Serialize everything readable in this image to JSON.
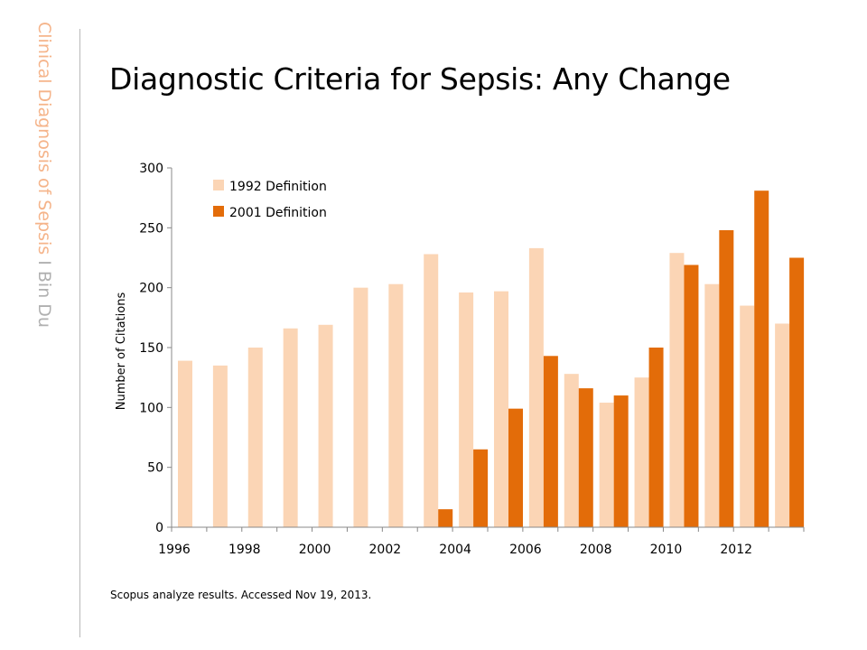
{
  "sidebar": {
    "title": "Clinical Diagnosis of Sepsis",
    "separator": " I ",
    "author": "Bin Du"
  },
  "page_title": "Diagnostic Criteria for Sepsis: Any Change",
  "footnote": "Scopus analyze results. Accessed Nov 19, 2013.",
  "colors": {
    "series_1992": "#fbd5b5",
    "series_2001": "#e36c09",
    "accent": "#f5b48a"
  },
  "chart_data": {
    "type": "bar",
    "title": "",
    "xlabel": "",
    "ylabel": "Number of Citations",
    "ylim": [
      0,
      300
    ],
    "yticks": [
      0,
      50,
      100,
      150,
      200,
      250,
      300
    ],
    "categories": [
      "1996",
      "1997",
      "1998",
      "1999",
      "2000",
      "2001",
      "2002",
      "2003",
      "2004",
      "2005",
      "2006",
      "2007",
      "2008",
      "2009",
      "2010",
      "2011",
      "2012",
      "2013"
    ],
    "x_tick_labels": [
      "1996",
      "1998",
      "2000",
      "2002",
      "2004",
      "2006",
      "2008",
      "2010",
      "2012"
    ],
    "legend_position": "top-left",
    "grid": false,
    "series": [
      {
        "name": "1992 Definition",
        "values": [
          139,
          135,
          150,
          166,
          169,
          200,
          203,
          228,
          196,
          197,
          233,
          128,
          104,
          125,
          229,
          203,
          185,
          170
        ]
      },
      {
        "name": "2001 Definition",
        "values": [
          null,
          null,
          null,
          null,
          null,
          null,
          null,
          15,
          65,
          99,
          143,
          116,
          110,
          150,
          219,
          248,
          281,
          225
        ]
      }
    ]
  }
}
